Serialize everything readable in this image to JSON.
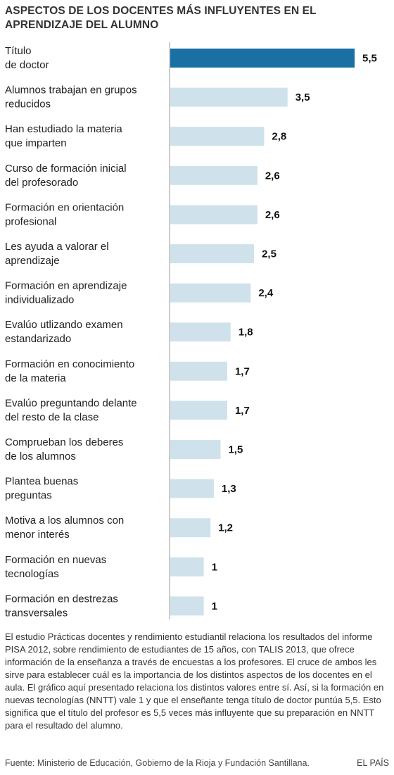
{
  "chart_data": {
    "type": "bar",
    "orientation": "horizontal",
    "title": "ASPECTOS DE LOS DOCENTES MÁS INFLUYENTES EN EL APRENDIZAJE DEL ALUMNO",
    "categories": [
      [
        "Título",
        "de doctor"
      ],
      [
        "Alumnos trabajan en grupos",
        "reducidos"
      ],
      [
        "Han estudiado la materia",
        "que imparten"
      ],
      [
        "Curso de formación inicial",
        "del profesorado"
      ],
      [
        "Formación en orientación",
        "profesional"
      ],
      [
        "Les ayuda a valorar el",
        "aprendizaje"
      ],
      [
        "Formación en aprendizaje",
        "individualizado"
      ],
      [
        "Evalúo utlizando examen",
        "estandarizado"
      ],
      [
        "Formación en conocimiento",
        "de la materia"
      ],
      [
        "Evalúo preguntando delante",
        "del resto de la clase"
      ],
      [
        "Comprueban los deberes",
        "de los alumnos"
      ],
      [
        "Plantea buenas",
        "preguntas"
      ],
      [
        "Motiva a los alumnos con",
        "menor interés"
      ],
      [
        "Formación en nuevas",
        "tecnologías"
      ],
      [
        "Formación en destrezas",
        "transversales"
      ]
    ],
    "values": [
      5.5,
      3.5,
      2.8,
      2.6,
      2.6,
      2.5,
      2.4,
      1.8,
      1.7,
      1.7,
      1.5,
      1.3,
      1.2,
      1,
      1
    ],
    "value_labels": [
      "5,5",
      "3,5",
      "2,8",
      "2,6",
      "2,6",
      "2,5",
      "2,4",
      "1,8",
      "1,7",
      "1,7",
      "1,5",
      "1,3",
      "1,2",
      "1",
      "1"
    ],
    "highlight_index": 0,
    "colors": {
      "highlight": "#1a6fa3",
      "bar": "#cfe2ec",
      "axis": "#9a9a9a"
    },
    "xlim": [
      0,
      5.5
    ],
    "grid": false,
    "legend": "none"
  },
  "description": "El estudio Prácticas docentes y rendimiento estudiantil relaciona los resultados del informe PISA 2012, sobre rendimiento de estudiantes de 15 años, con TALIS 2013, que ofrece información de la enseñanza a través de encuestas a los profesores. El cruce de ambos les sirve para establecer cuál es la importancia de los distintos aspectos de los docentes en el aula. El gráfico aquí presentado relaciona los distintos valores entre sí. Así, si la formación en nuevas tecnologías (NNTT) vale 1 y que el enseñante tenga título de doctor puntúa 5,5. Esto significa que el título del profesor es 5,5 veces más influyente que su preparación en NNTT para el resultado del alumno.",
  "footer": {
    "source": "Fuente: Ministerio de Educación, Gobierno de la Rioja y Fundación Santillana.",
    "brand": "EL PAÍS"
  }
}
